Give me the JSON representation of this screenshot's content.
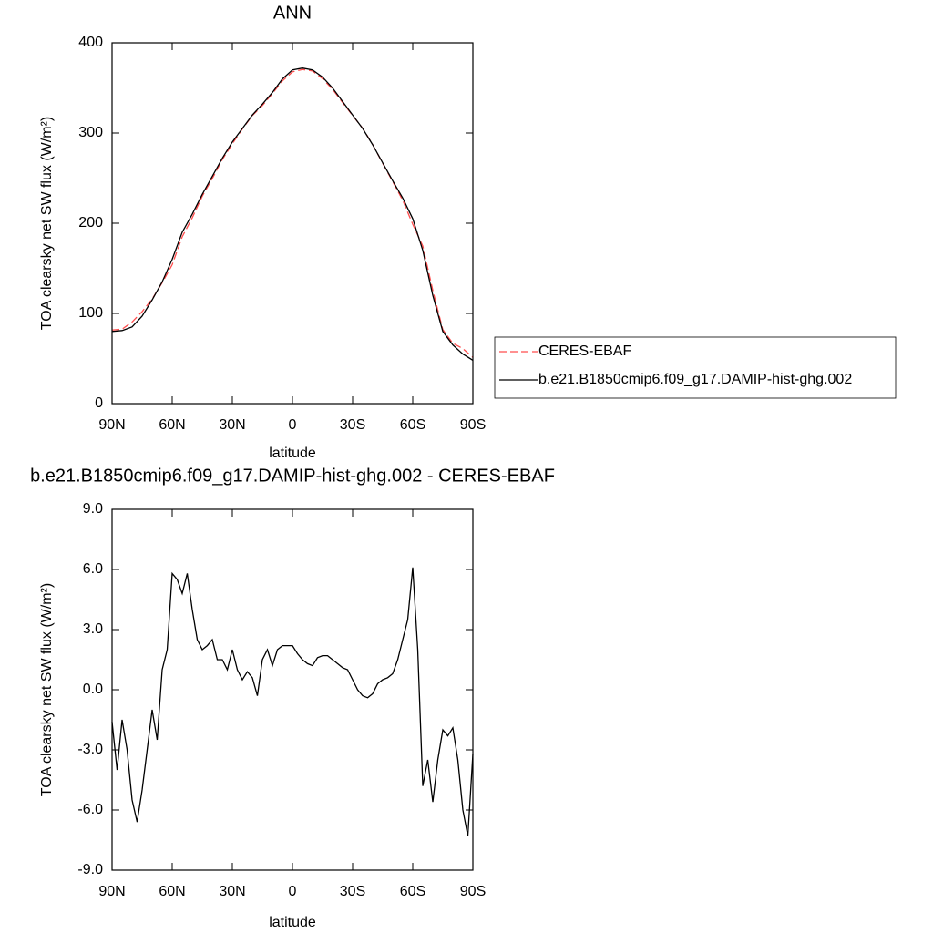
{
  "chart_data": [
    {
      "type": "line",
      "title": "ANN",
      "xlabel": "latitude",
      "ylabel": "TOA clearsky net SW flux (W/m²)",
      "x": [
        90,
        85,
        80,
        75,
        70,
        65,
        60,
        55,
        50,
        45,
        40,
        35,
        30,
        25,
        20,
        15,
        10,
        5,
        0,
        -5,
        -10,
        -15,
        -20,
        -25,
        -30,
        -35,
        -40,
        -45,
        -50,
        -55,
        -60,
        -65,
        -70,
        -75,
        -80,
        -85,
        -90
      ],
      "series": [
        {
          "name": "CERES-EBAF",
          "color": "#ff4d4d",
          "dashed": true,
          "values": [
            81.6,
            82.5,
            90.5,
            102,
            116,
            134,
            154,
            185,
            206,
            230,
            249.5,
            270.5,
            288,
            304.5,
            319.4,
            330.5,
            343.8,
            357.8,
            367.8,
            370.5,
            368.8,
            360.3,
            348.5,
            333.9,
            319.5,
            305.3,
            287.2,
            266.5,
            246.2,
            225.5,
            198.9,
            174.8,
            125.6,
            82,
            66.9,
            61,
            51.2
          ]
        },
        {
          "name": "b.e21.B1850cmip6.f09_g17.DAMIP-hist-ghg.002",
          "color": "#000000",
          "dashed": false,
          "values": [
            80,
            81,
            85,
            97,
            115,
            135,
            160,
            190,
            210,
            232,
            252,
            272,
            290,
            305,
            320,
            332,
            345,
            360,
            370,
            372,
            370,
            362,
            350,
            335,
            320,
            305,
            287,
            267,
            247,
            228,
            205,
            170,
            120,
            80,
            65,
            55,
            48
          ]
        }
      ],
      "xlim": [
        90,
        -90
      ],
      "xticks": [
        {
          "value": 90,
          "label": "90N"
        },
        {
          "value": 60,
          "label": "60N"
        },
        {
          "value": 30,
          "label": "30N"
        },
        0,
        {
          "value": -30,
          "label": "30S"
        },
        {
          "value": -60,
          "label": "60S"
        },
        {
          "value": -90,
          "label": "90S"
        }
      ],
      "ylim": [
        0,
        400
      ],
      "yticks": [
        0,
        100,
        200,
        300,
        400
      ],
      "legend": "right"
    },
    {
      "type": "line",
      "title": "b.e21.B1850cmip6.f09_g17.DAMIP-hist-ghg.002 - CERES-EBAF",
      "xlabel": "latitude",
      "ylabel": "TOA clearsky net SW flux (W/m²)",
      "x": [
        90,
        87.5,
        85,
        82.5,
        80,
        77.5,
        75,
        72.5,
        70,
        67.5,
        65,
        62.5,
        60,
        57.5,
        55,
        52.5,
        50,
        47.5,
        45,
        42.5,
        40,
        37.5,
        35,
        32.5,
        30,
        27.5,
        25,
        22.5,
        20,
        17.5,
        15,
        12.5,
        10,
        7.5,
        5,
        2.5,
        0,
        -2.5,
        -5,
        -7.5,
        -10,
        -12.5,
        -15,
        -17.5,
        -20,
        -22.5,
        -25,
        -27.5,
        -30,
        -32.5,
        -35,
        -37.5,
        -40,
        -42.5,
        -45,
        -47.5,
        -50,
        -52.5,
        -55,
        -57.5,
        -60,
        -62.5,
        -65,
        -67.5,
        -70,
        -72.5,
        -75,
        -77.5,
        -80,
        -82.5,
        -85,
        -87.5,
        -90
      ],
      "values": [
        -1.6,
        -4.0,
        -1.5,
        -3.0,
        -5.5,
        -6.6,
        -5.0,
        -3.0,
        -1.0,
        -2.5,
        1.0,
        2.0,
        5.8,
        5.5,
        4.8,
        5.8,
        4.0,
        2.5,
        2.0,
        2.2,
        2.5,
        1.5,
        1.5,
        1.0,
        2.0,
        1.0,
        0.5,
        0.9,
        0.6,
        -0.3,
        1.5,
        2.0,
        1.2,
        2.0,
        2.2,
        2.2,
        2.2,
        1.8,
        1.5,
        1.3,
        1.2,
        1.6,
        1.7,
        1.7,
        1.5,
        1.3,
        1.1,
        1.0,
        0.5,
        0.0,
        -0.3,
        -0.4,
        -0.2,
        0.3,
        0.5,
        0.6,
        0.8,
        1.5,
        2.5,
        3.5,
        6.1,
        2.0,
        -4.8,
        -3.5,
        -5.6,
        -3.5,
        -2.0,
        -2.3,
        -1.9,
        -3.5,
        -6.0,
        -7.3,
        -3.2
      ],
      "color": "#000000",
      "xlim": [
        90,
        -90
      ],
      "xticks": [
        {
          "value": 90,
          "label": "90N"
        },
        {
          "value": 60,
          "label": "60N"
        },
        {
          "value": 30,
          "label": "30N"
        },
        0,
        {
          "value": -30,
          "label": "30S"
        },
        {
          "value": -60,
          "label": "60S"
        },
        {
          "value": -90,
          "label": "90S"
        }
      ],
      "ylim": [
        -9,
        9
      ],
      "yticks": [
        {
          "value": -9,
          "label": "-9.0"
        },
        {
          "value": -6,
          "label": "-6.0"
        },
        {
          "value": -3,
          "label": "-3.0"
        },
        {
          "value": 0,
          "label": "0.0"
        },
        {
          "value": 3,
          "label": "3.0"
        },
        {
          "value": 6,
          "label": "6.0"
        },
        {
          "value": 9,
          "label": "9.0"
        }
      ]
    }
  ]
}
